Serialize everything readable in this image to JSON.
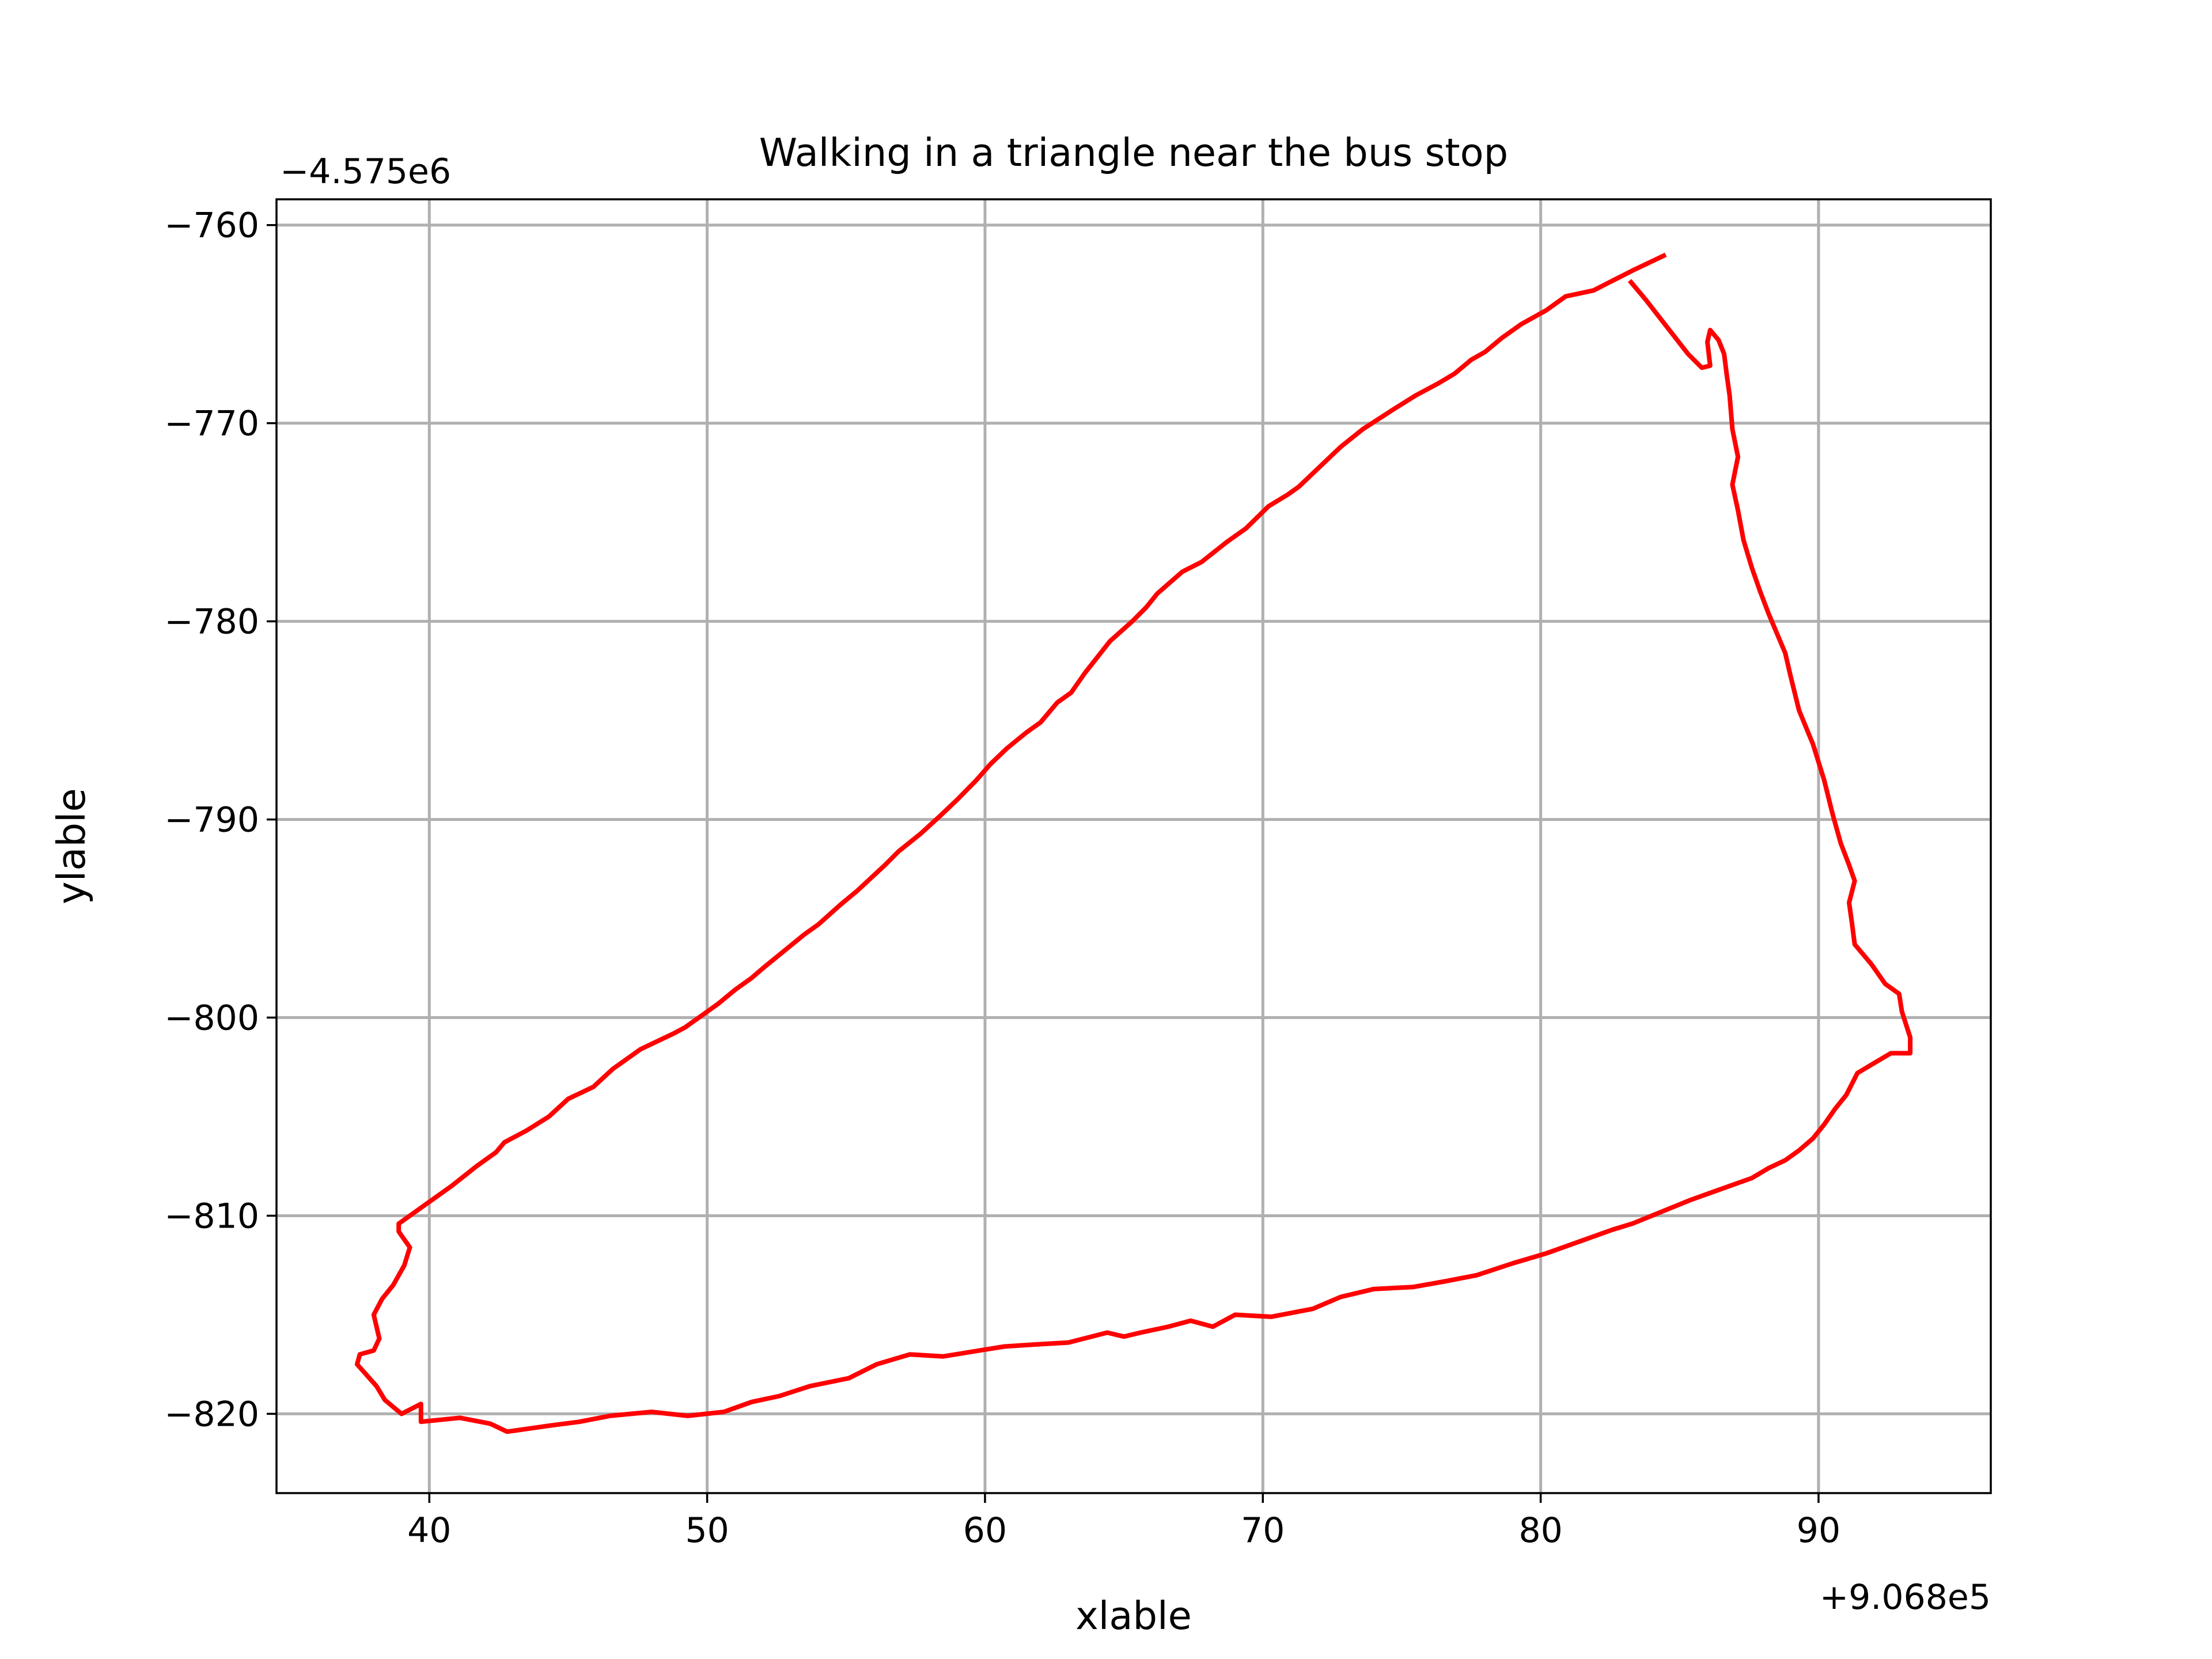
{
  "chart_data": {
    "type": "line",
    "title": "Walking in a triangle near the bus stop",
    "xlabel": "xlable",
    "ylabel": "ylable",
    "x_offset_label": "+9.068e5",
    "y_offset_label": "−4.575e6",
    "xlim": [
      34.5,
      96.2
    ],
    "ylim": [
      -824.0,
      -758.7
    ],
    "x_ticks": [
      40,
      50,
      60,
      70,
      80,
      90
    ],
    "x_tick_labels": [
      "40",
      "50",
      "60",
      "70",
      "80",
      "90"
    ],
    "y_ticks": [
      -760,
      -770,
      -780,
      -790,
      -800,
      -810,
      -820
    ],
    "y_tick_labels": [
      "−760",
      "−770",
      "−780",
      "−790",
      "−800",
      "−810",
      "−820"
    ],
    "grid": true,
    "series": [
      {
        "color": "#ff0000",
        "segments": [
          [
            [
              84.5,
              -761.5
            ],
            [
              83.3,
              -762.3
            ],
            [
              82.6,
              -762.8
            ],
            [
              81.9,
              -763.3
            ],
            [
              80.9,
              -763.6
            ],
            [
              80.2,
              -764.3
            ],
            [
              79.3,
              -765.0
            ],
            [
              78.6,
              -765.7
            ],
            [
              78.0,
              -766.4
            ],
            [
              77.5,
              -766.8
            ],
            [
              76.9,
              -767.5
            ],
            [
              76.3,
              -768.0
            ],
            [
              75.5,
              -768.6
            ],
            [
              74.7,
              -769.3
            ],
            [
              73.6,
              -770.3
            ],
            [
              72.8,
              -771.2
            ],
            [
              71.9,
              -772.4
            ],
            [
              71.3,
              -773.2
            ],
            [
              70.9,
              -773.6
            ],
            [
              70.2,
              -774.2
            ],
            [
              69.4,
              -775.3
            ],
            [
              68.7,
              -776.0
            ],
            [
              67.8,
              -777.0
            ],
            [
              67.1,
              -777.5
            ],
            [
              66.2,
              -778.6
            ],
            [
              65.8,
              -779.3
            ],
            [
              65.3,
              -780.0
            ],
            [
              64.5,
              -781.0
            ],
            [
              63.6,
              -782.6
            ],
            [
              63.1,
              -783.6
            ],
            [
              62.6,
              -784.1
            ],
            [
              62.0,
              -785.1
            ],
            [
              61.5,
              -785.6
            ],
            [
              60.8,
              -786.4
            ],
            [
              60.2,
              -787.2
            ],
            [
              59.7,
              -788.0
            ],
            [
              59.0,
              -789.0
            ],
            [
              58.4,
              -789.8
            ],
            [
              57.7,
              -790.7
            ],
            [
              56.9,
              -791.6
            ],
            [
              56.4,
              -792.3
            ],
            [
              55.4,
              -793.6
            ],
            [
              54.8,
              -794.3
            ],
            [
              54.0,
              -795.3
            ],
            [
              53.5,
              -795.8
            ],
            [
              52.8,
              -796.6
            ],
            [
              52.1,
              -797.4
            ],
            [
              51.6,
              -798.0
            ],
            [
              51.0,
              -798.6
            ],
            [
              50.4,
              -799.3
            ],
            [
              49.8,
              -799.9
            ],
            [
              49.2,
              -800.5
            ],
            [
              48.8,
              -800.8
            ],
            [
              47.6,
              -801.6
            ],
            [
              46.6,
              -802.6
            ],
            [
              45.9,
              -803.5
            ],
            [
              45.0,
              -804.1
            ],
            [
              44.3,
              -805.0
            ],
            [
              43.5,
              -805.7
            ],
            [
              42.7,
              -806.3
            ],
            [
              42.4,
              -806.8
            ],
            [
              41.7,
              -807.5
            ],
            [
              40.8,
              -808.5
            ],
            [
              39.9,
              -809.4
            ],
            [
              39.3,
              -810.0
            ],
            [
              38.9,
              -810.4
            ],
            [
              38.9,
              -810.8
            ],
            [
              39.3,
              -811.6
            ],
            [
              39.1,
              -812.5
            ],
            [
              38.7,
              -813.5
            ],
            [
              38.3,
              -814.2
            ],
            [
              38.0,
              -815.0
            ],
            [
              38.2,
              -816.2
            ],
            [
              38.0,
              -816.8
            ],
            [
              37.5,
              -817.0
            ],
            [
              37.4,
              -817.5
            ],
            [
              38.1,
              -818.6
            ],
            [
              38.4,
              -819.3
            ],
            [
              39.0,
              -820.0
            ],
            [
              39.7,
              -819.5
            ],
            [
              39.7,
              -820.4
            ],
            [
              41.1,
              -820.2
            ],
            [
              42.2,
              -820.5
            ],
            [
              42.8,
              -820.9
            ],
            [
              44.3,
              -820.6
            ],
            [
              45.4,
              -820.4
            ],
            [
              46.5,
              -820.1
            ],
            [
              48.0,
              -819.9
            ],
            [
              49.3,
              -820.1
            ],
            [
              50.6,
              -819.9
            ],
            [
              51.6,
              -819.4
            ],
            [
              52.6,
              -819.1
            ],
            [
              53.7,
              -818.6
            ],
            [
              55.1,
              -818.2
            ],
            [
              56.1,
              -817.5
            ],
            [
              57.3,
              -817.0
            ],
            [
              58.5,
              -817.1
            ],
            [
              59.8,
              -816.8
            ],
            [
              60.7,
              -816.6
            ],
            [
              61.8,
              -816.5
            ],
            [
              63.0,
              -816.4
            ],
            [
              64.4,
              -815.9
            ],
            [
              65.0,
              -816.1
            ],
            [
              65.6,
              -815.9
            ],
            [
              66.6,
              -815.6
            ],
            [
              67.4,
              -815.3
            ],
            [
              68.2,
              -815.6
            ],
            [
              69.0,
              -815.0
            ],
            [
              70.3,
              -815.1
            ],
            [
              71.8,
              -814.7
            ],
            [
              72.8,
              -814.1
            ],
            [
              74.0,
              -813.7
            ],
            [
              75.4,
              -813.6
            ],
            [
              76.6,
              -813.3
            ],
            [
              77.7,
              -813.0
            ],
            [
              79.0,
              -812.4
            ],
            [
              80.2,
              -811.9
            ],
            [
              81.4,
              -811.3
            ],
            [
              82.6,
              -810.7
            ],
            [
              83.3,
              -810.4
            ],
            [
              84.0,
              -810.0
            ],
            [
              84.7,
              -809.6
            ],
            [
              85.4,
              -809.2
            ],
            [
              86.2,
              -808.8
            ],
            [
              87.0,
              -808.4
            ],
            [
              87.6,
              -808.1
            ],
            [
              88.2,
              -807.6
            ],
            [
              88.8,
              -807.2
            ],
            [
              89.3,
              -806.7
            ],
            [
              89.8,
              -806.1
            ],
            [
              90.2,
              -805.4
            ],
            [
              90.6,
              -804.6
            ],
            [
              91.0,
              -803.9
            ],
            [
              91.4,
              -802.8
            ],
            [
              92.0,
              -802.3
            ],
            [
              92.6,
              -801.8
            ],
            [
              93.3,
              -801.8
            ],
            [
              93.3,
              -801.0
            ],
            [
              93.0,
              -799.7
            ],
            [
              92.9,
              -798.8
            ],
            [
              92.4,
              -798.3
            ],
            [
              91.9,
              -797.3
            ],
            [
              91.3,
              -796.3
            ],
            [
              91.2,
              -795.2
            ],
            [
              91.1,
              -794.2
            ],
            [
              91.3,
              -793.1
            ],
            [
              91.1,
              -792.3
            ],
            [
              90.8,
              -791.2
            ],
            [
              90.5,
              -789.7
            ],
            [
              90.2,
              -788.0
            ],
            [
              89.8,
              -786.2
            ],
            [
              89.3,
              -784.5
            ],
            [
              89.0,
              -782.8
            ],
            [
              88.8,
              -781.6
            ],
            [
              88.5,
              -780.6
            ],
            [
              88.2,
              -779.6
            ],
            [
              87.9,
              -778.5
            ],
            [
              87.6,
              -777.3
            ],
            [
              87.3,
              -775.9
            ],
            [
              87.1,
              -774.4
            ],
            [
              86.9,
              -773.1
            ],
            [
              87.1,
              -771.7
            ],
            [
              86.9,
              -770.3
            ],
            [
              86.8,
              -768.6
            ],
            [
              86.7,
              -767.6
            ],
            [
              86.6,
              -766.5
            ],
            [
              86.4,
              -765.8
            ],
            [
              86.1,
              -765.3
            ],
            [
              86.0,
              -765.9
            ],
            [
              86.1,
              -767.1
            ],
            [
              85.8,
              -767.2
            ],
            [
              85.3,
              -766.5
            ],
            [
              84.8,
              -765.6
            ],
            [
              84.3,
              -764.7
            ],
            [
              83.8,
              -763.8
            ],
            [
              83.2,
              -762.8
            ]
          ]
        ]
      }
    ]
  }
}
